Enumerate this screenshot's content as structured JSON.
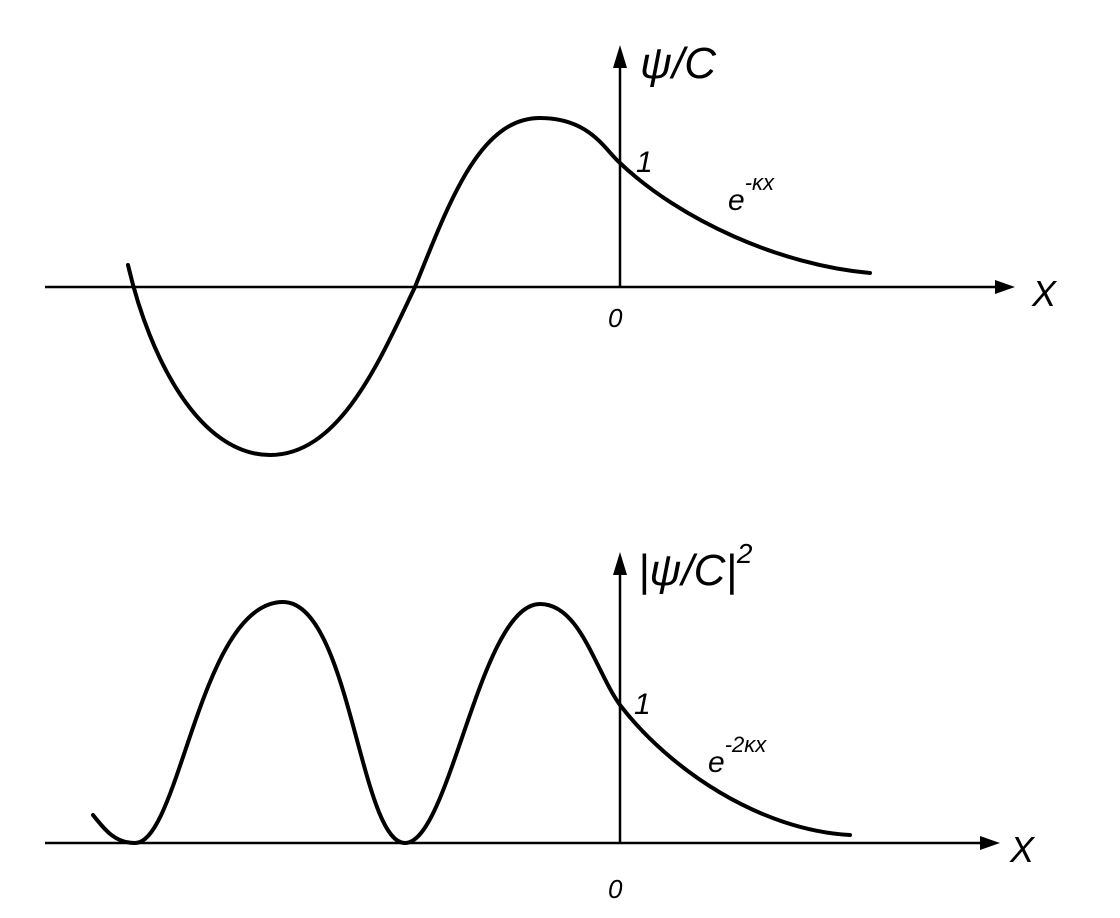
{
  "top": {
    "y_label": "ψ/C",
    "point_label": "1",
    "curve_label": {
      "base": "e",
      "exponent": "-κx"
    },
    "x_label": "X",
    "origin_label": "0"
  },
  "bottom": {
    "y_label": {
      "text": "|ψ/C|",
      "exponent": "2"
    },
    "point_label": "1",
    "curve_label": {
      "base": "e",
      "exponent": "-2κx"
    },
    "x_label": "X",
    "origin_label": "0"
  }
}
